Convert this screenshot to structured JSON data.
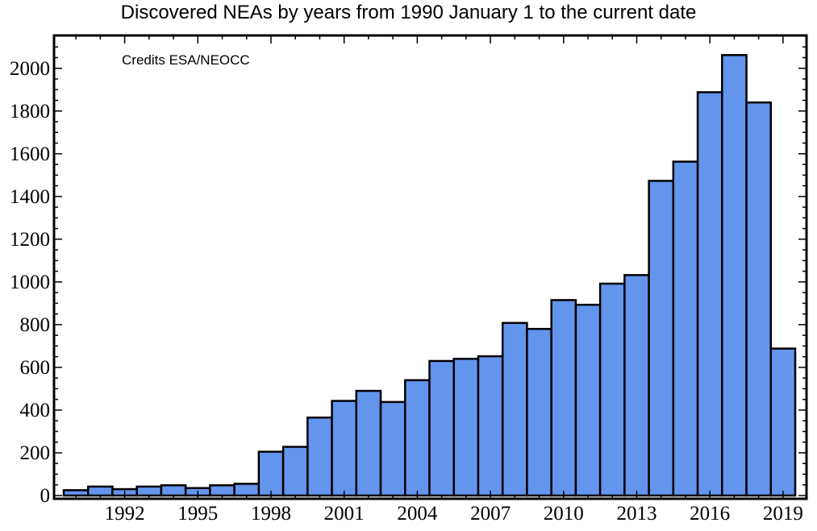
{
  "title": "Discovered NEAs by years from 1990 January 1 to the current date",
  "credit": "Credits ESA/NEOCC",
  "colors": {
    "bar_fill": "#6495ED",
    "bar_stroke": "#000000",
    "frame": "#000000"
  },
  "chart_data": {
    "type": "bar",
    "title": "Discovered NEAs by years from 1990 January 1 to the current date",
    "xlabel": "",
    "ylabel": "",
    "categories": [
      "1990",
      "1991",
      "1992",
      "1993",
      "1994",
      "1995",
      "1996",
      "1997",
      "1998",
      "1999",
      "2000",
      "2001",
      "2002",
      "2003",
      "2004",
      "2005",
      "2006",
      "2007",
      "2008",
      "2009",
      "2010",
      "2011",
      "2012",
      "2013",
      "2014",
      "2015",
      "2016",
      "2017",
      "2018",
      "2019"
    ],
    "values": [
      25,
      42,
      30,
      42,
      48,
      35,
      48,
      55,
      205,
      228,
      365,
      443,
      490,
      438,
      540,
      630,
      640,
      652,
      808,
      780,
      915,
      893,
      992,
      1032,
      1473,
      1563,
      1888,
      2062,
      1840,
      688
    ],
    "x_ticks": [
      "1992",
      "1995",
      "1998",
      "2001",
      "2004",
      "2007",
      "2010",
      "2013",
      "2016",
      "2019"
    ],
    "y_ticks": [
      "0",
      "200",
      "400",
      "600",
      "800",
      "1000",
      "1200",
      "1400",
      "1600",
      "1800",
      "2000"
    ],
    "ylim": [
      0,
      2150
    ],
    "grid": false,
    "legend": "none"
  }
}
